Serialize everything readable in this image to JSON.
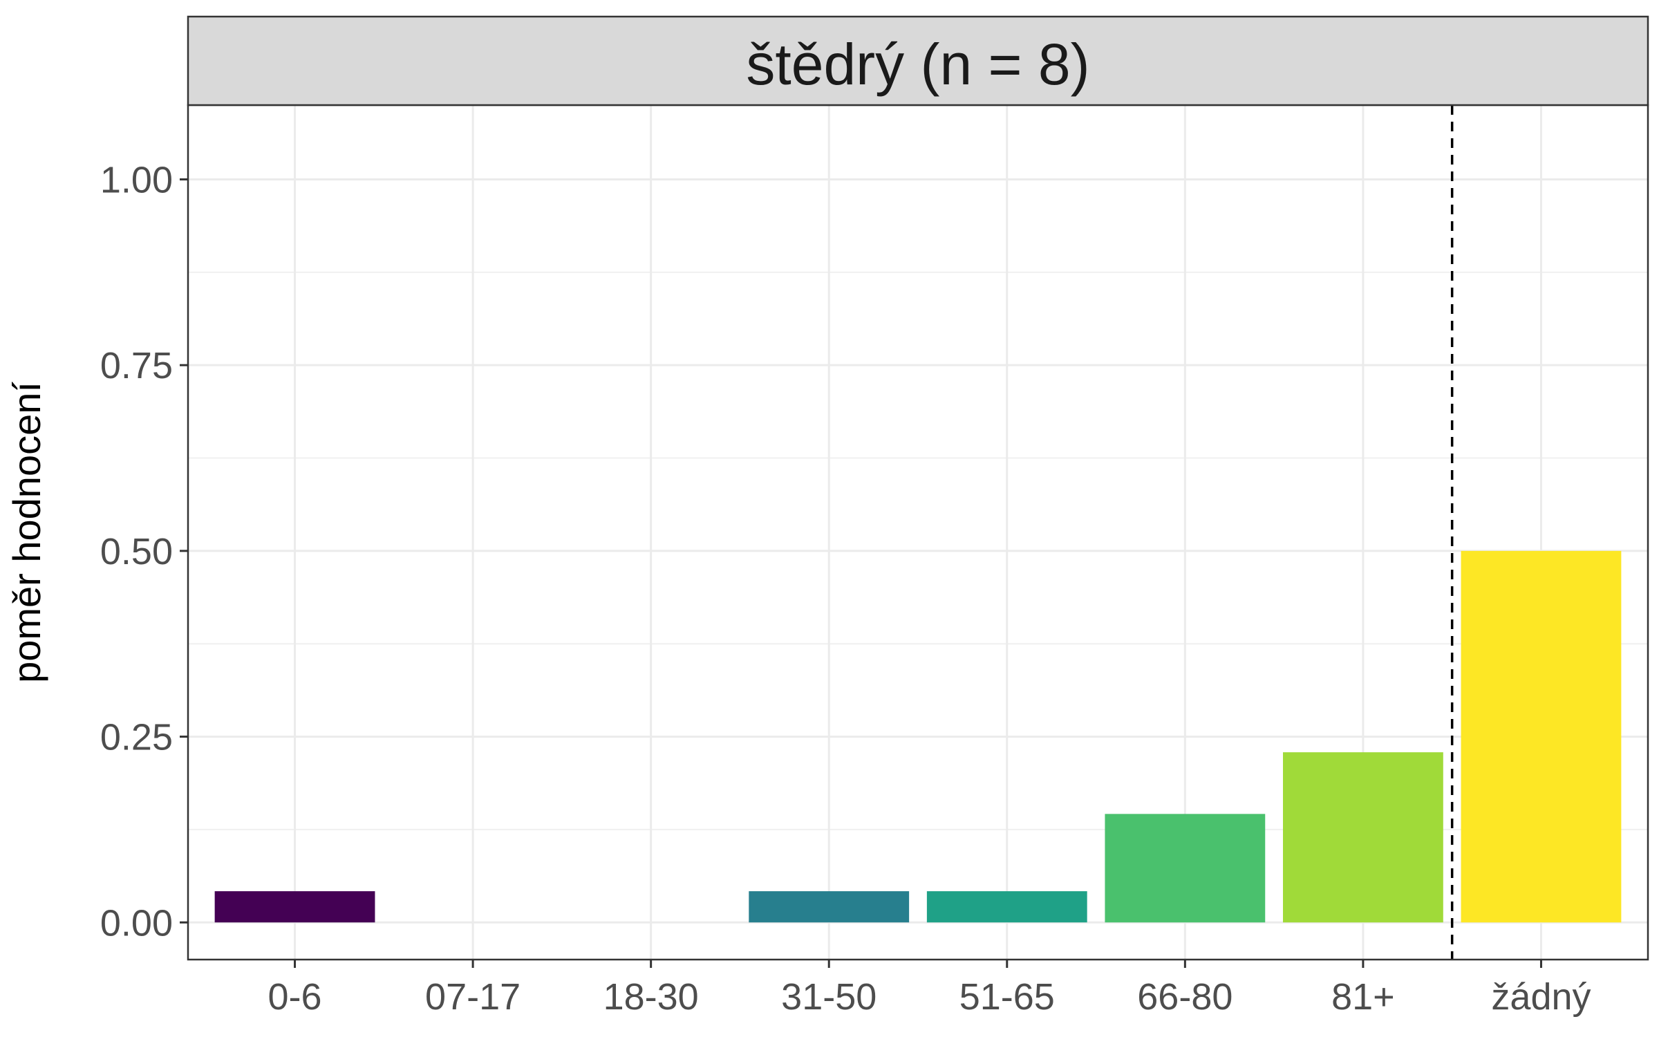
{
  "chart_data": {
    "type": "bar",
    "facet_title": "štědrý (n = 8)",
    "ylabel": "poměr hodnocení",
    "xlabel": "",
    "ylim": [
      -0.05,
      1.1
    ],
    "yticks": [
      "0.00",
      "0.25",
      "0.50",
      "0.75",
      "1.00"
    ],
    "categories": [
      "0-6",
      "07-17",
      "18-30",
      "31-50",
      "51-65",
      "66-80",
      "81+",
      "žádný"
    ],
    "values": [
      0.042,
      0,
      0,
      0.042,
      0.042,
      0.146,
      0.229,
      0.5
    ],
    "colors": [
      "#440154",
      "#46327e",
      "#365c8d",
      "#277f8e",
      "#1fa187",
      "#4ac16d",
      "#a0da39",
      "#fde725"
    ],
    "separator_after_category": "81+",
    "grid": true,
    "legend": "none"
  }
}
